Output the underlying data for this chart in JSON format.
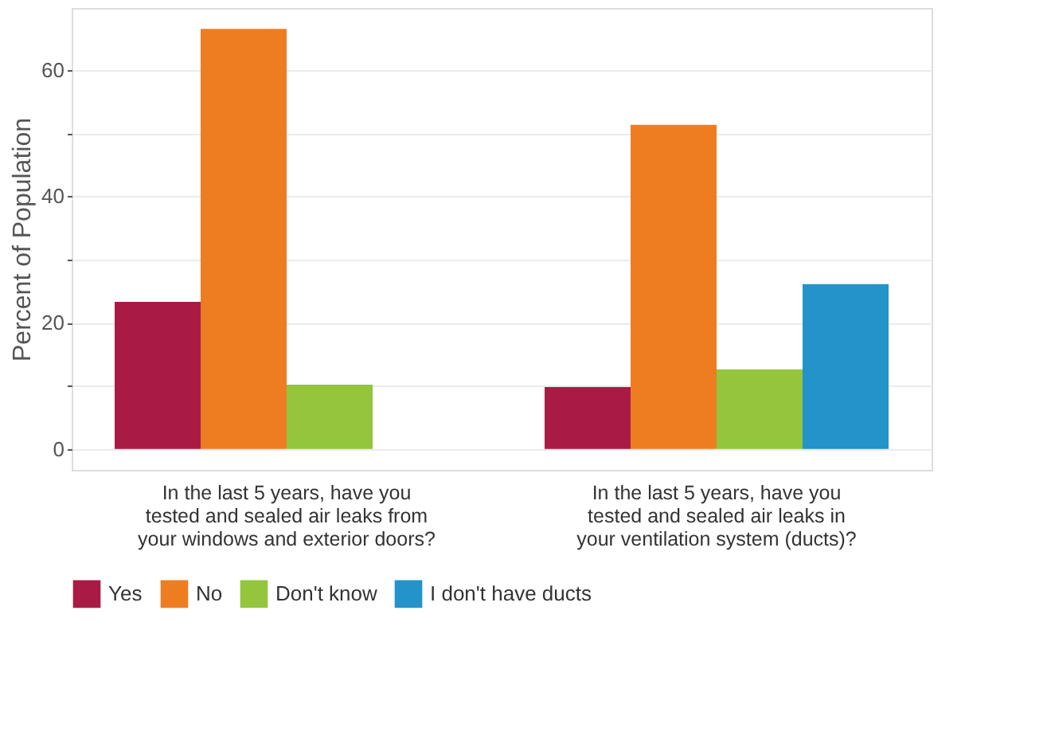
{
  "chart_data": {
    "type": "bar",
    "categories": [
      "In the last 5 years, have you tested and sealed air leaks from your windows and exterior doors?",
      "In the last 5 years, have you tested and sealed air leaks in your ventilation system (ducts)?"
    ],
    "series": [
      {
        "name": "Yes",
        "color": "#a91b45",
        "values": [
          23.3,
          9.8
        ]
      },
      {
        "name": "No",
        "color": "#ee7d22",
        "values": [
          66.5,
          51.3
        ]
      },
      {
        "name": "Don't know",
        "color": "#93c63c",
        "values": [
          10.2,
          12.6
        ]
      },
      {
        "name": "I don't have ducts",
        "color": "#2393c9",
        "values": [
          null,
          26.1
        ]
      }
    ],
    "ylabel": "Percent of Population",
    "ylim": [
      -3.3,
      69.8
    ],
    "yticks": [
      0,
      {
        "value": 10,
        "label": null
      },
      20,
      {
        "value": 30,
        "label": null
      },
      40,
      {
        "value": 50,
        "label": null
      },
      60
    ],
    "grid": true,
    "legend": "bottom"
  }
}
